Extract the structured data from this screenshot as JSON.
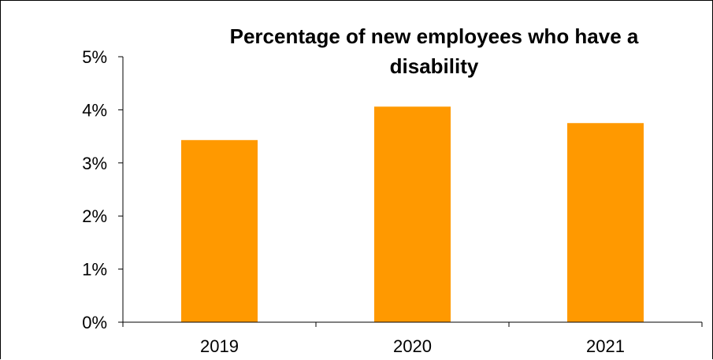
{
  "chart_data": {
    "type": "bar",
    "title_lines": [
      "Percentage of new employees who have a",
      "disability"
    ],
    "categories": [
      "2019",
      "2020",
      "2021"
    ],
    "values": [
      3.43,
      4.06,
      3.75
    ],
    "y_ticks": [
      "0%",
      "1%",
      "2%",
      "3%",
      "4%",
      "5%"
    ],
    "ylim": [
      0,
      5
    ],
    "xlabel": "",
    "ylabel": "",
    "grid": false,
    "legend": "none",
    "bar_color": "#FF9900",
    "axis_color": "#000000"
  }
}
